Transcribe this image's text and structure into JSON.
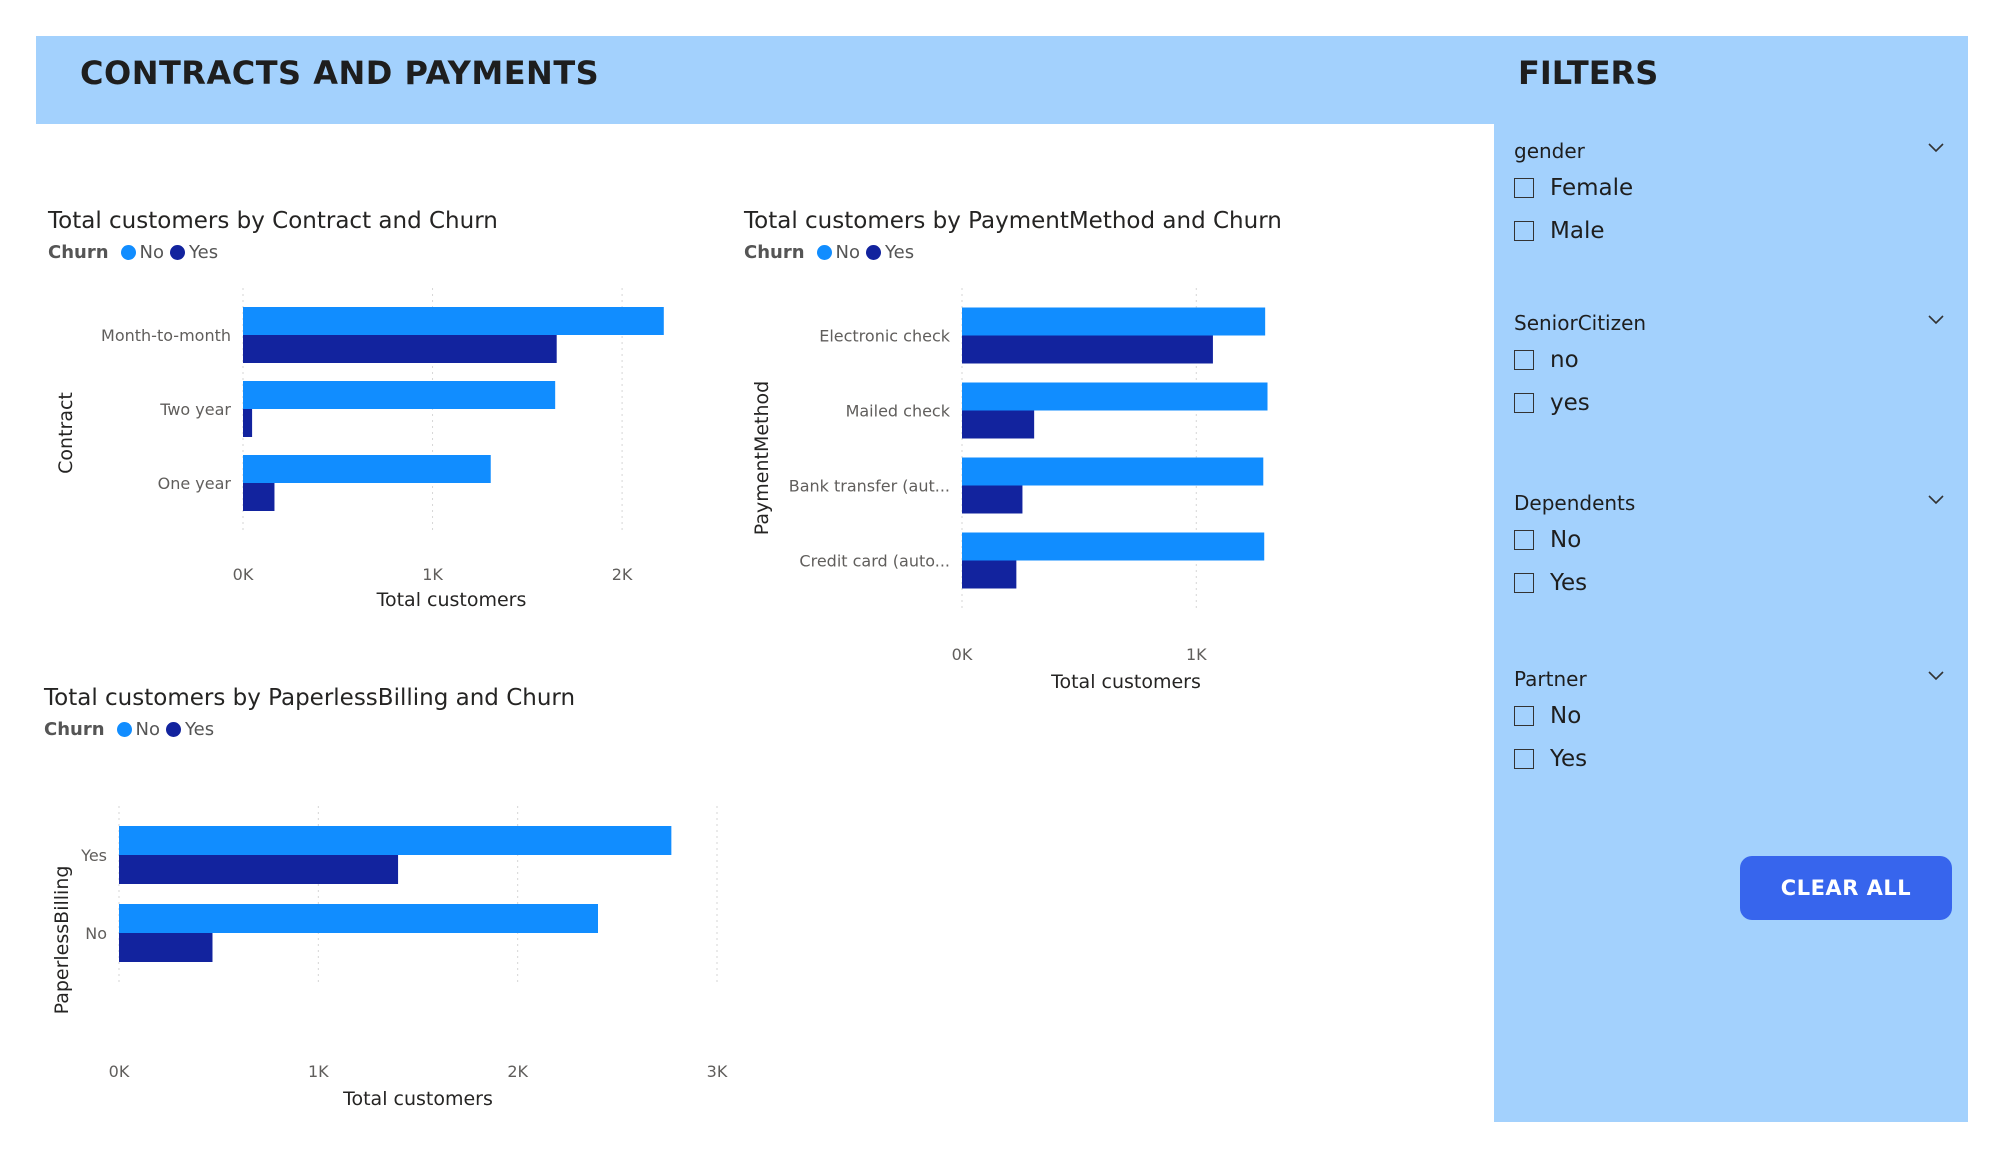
{
  "header": {
    "title": "CONTRACTS AND PAYMENTS"
  },
  "filters": {
    "title": "FILTERS",
    "slicers": [
      {
        "title": "gender",
        "options": [
          "Female",
          "Male"
        ]
      },
      {
        "title": "SeniorCitizen",
        "options": [
          "no",
          "yes"
        ]
      },
      {
        "title": "Dependents",
        "options": [
          "No",
          "Yes"
        ]
      },
      {
        "title": "Partner",
        "options": [
          "No",
          "Yes"
        ]
      }
    ],
    "clear_label": "CLEAR ALL"
  },
  "colors": {
    "no": "#118dff",
    "yes": "#12239e",
    "panel": "#a3d1fd",
    "button": "#3765ed"
  },
  "chart_data": [
    {
      "type": "bar",
      "orientation": "horizontal",
      "title": "Total customers by Contract and Churn",
      "legend_title": "Churn",
      "legend_position": "top-left",
      "categories": [
        "Month-to-month",
        "Two year",
        "One year"
      ],
      "series": [
        {
          "name": "No",
          "values": [
            2220,
            1647,
            1307
          ]
        },
        {
          "name": "Yes",
          "values": [
            1655,
            48,
            166
          ]
        }
      ],
      "xlabel": "Total customers",
      "ylabel": "Contract",
      "xlim": [
        0,
        2200
      ],
      "xticks": [
        "0K",
        "1K",
        "2K"
      ],
      "xtick_values": [
        0,
        1000,
        2000
      ],
      "grid": true
    },
    {
      "type": "bar",
      "orientation": "horizontal",
      "title": "Total customers by PaymentMethod and Churn",
      "legend_title": "Churn",
      "legend_position": "top-left",
      "categories": [
        "Electronic check",
        "Mailed check",
        "Bank transfer (aut...",
        "Credit card (auto..."
      ],
      "series": [
        {
          "name": "No",
          "values": [
            1294,
            1304,
            1286,
            1290
          ]
        },
        {
          "name": "Yes",
          "values": [
            1071,
            308,
            258,
            232
          ]
        }
      ],
      "xlabel": "Total customers",
      "ylabel": "PaymentMethod",
      "xlim": [
        0,
        1400
      ],
      "xticks": [
        "0K",
        "1K"
      ],
      "xtick_values": [
        0,
        1000
      ],
      "grid": true
    },
    {
      "type": "bar",
      "orientation": "horizontal",
      "title": "Total customers by PaperlessBilling and Churn",
      "legend_title": "Churn",
      "legend_position": "top-left",
      "categories": [
        "Yes",
        "No"
      ],
      "series": [
        {
          "name": "No",
          "values": [
            2771,
            2403
          ]
        },
        {
          "name": "Yes",
          "values": [
            1400,
            469
          ]
        }
      ],
      "xlabel": "Total customers",
      "ylabel": "PaperlessBilling",
      "xlim": [
        0,
        3000
      ],
      "xticks": [
        "0K",
        "1K",
        "2K",
        "3K"
      ],
      "xtick_values": [
        0,
        1000,
        2000,
        3000
      ],
      "grid": true
    }
  ]
}
